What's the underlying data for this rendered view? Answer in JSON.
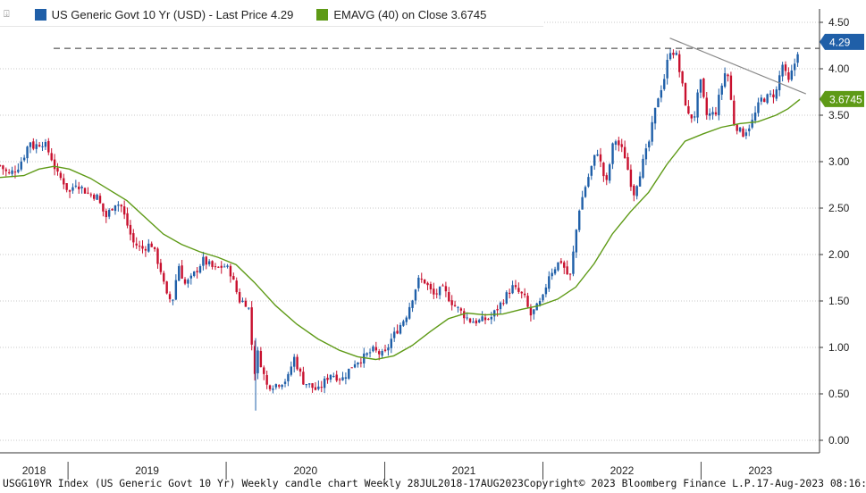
{
  "legend": {
    "menu_icon": "chart-menu-icon",
    "series1_label": "US Generic Govt 10 Yr (USD) - Last Price 4.29",
    "series1_color": "#1f5fa8",
    "series2_label": "EMAVG (40)  on Close 3.6745",
    "series2_color": "#5e9a16"
  },
  "footer": {
    "left": "USGG10YR Index (US Generic Govt 10 Yr) Weekly candle chart  Weekly 28JUL2018-17AUG2023",
    "middle": "Copyright© 2023 Bloomberg Finance L.P.",
    "right": "17-Aug-2023 08:16:16"
  },
  "chart_data": {
    "type": "candlestick",
    "title": "US Generic Govt 10 Yr (USD)",
    "frequency": "Weekly",
    "period": "28JUL2018-17AUG2023",
    "ylim": [
      0,
      4.6
    ],
    "y_ticks": [
      "0.00",
      "0.50",
      "1.00",
      "1.50",
      "2.00",
      "2.50",
      "3.00",
      "3.50",
      "4.00",
      "4.50"
    ],
    "x_labels": [
      "2018",
      "2019",
      "2020",
      "2021",
      "2022",
      "2023"
    ],
    "last_price": 4.29,
    "last_price_label": "4.29",
    "ema_last": 3.6745,
    "ema_last_label": "3.6745",
    "grid": true,
    "legend_position": "top-left",
    "colors": {
      "up": "#1f5fa8",
      "down": "#c8102e",
      "ema": "#5e9a16",
      "trend": "#888888",
      "ref": "#333333"
    },
    "reference_line": 4.22,
    "trendline": {
      "start": [
        "2022-10-21",
        4.33
      ],
      "end": [
        "2023-08-31",
        3.73
      ]
    },
    "closes": [
      [
        "2018-07-28",
        2.96
      ],
      [
        "2018-08-17",
        2.86
      ],
      [
        "2018-09-07",
        2.94
      ],
      [
        "2018-09-21",
        3.06
      ],
      [
        "2018-10-05",
        3.23
      ],
      [
        "2018-10-12",
        3.16
      ],
      [
        "2018-11-02",
        3.21
      ],
      [
        "2018-11-09",
        3.18
      ],
      [
        "2018-11-23",
        3.05
      ],
      [
        "2018-12-07",
        2.86
      ],
      [
        "2018-12-21",
        2.79
      ],
      [
        "2019-01-04",
        2.66
      ],
      [
        "2019-01-18",
        2.78
      ],
      [
        "2019-02-15",
        2.66
      ],
      [
        "2019-03-08",
        2.63
      ],
      [
        "2019-03-29",
        2.4
      ],
      [
        "2019-04-19",
        2.56
      ],
      [
        "2019-05-03",
        2.53
      ],
      [
        "2019-05-31",
        2.13
      ],
      [
        "2019-06-21",
        2.06
      ],
      [
        "2019-07-12",
        2.12
      ],
      [
        "2019-08-02",
        1.85
      ],
      [
        "2019-08-16",
        1.55
      ],
      [
        "2019-08-30",
        1.5
      ],
      [
        "2019-09-13",
        1.9
      ],
      [
        "2019-09-27",
        1.68
      ],
      [
        "2019-10-11",
        1.73
      ],
      [
        "2019-11-08",
        1.94
      ],
      [
        "2019-12-06",
        1.84
      ],
      [
        "2019-12-27",
        1.88
      ],
      [
        "2020-01-10",
        1.82
      ],
      [
        "2020-01-31",
        1.51
      ],
      [
        "2020-02-21",
        1.47
      ],
      [
        "2020-03-06",
        0.71
      ],
      [
        "2020-03-13",
        0.95
      ],
      [
        "2020-03-20",
        0.85
      ],
      [
        "2020-04-03",
        0.59
      ],
      [
        "2020-04-24",
        0.6
      ],
      [
        "2020-05-22",
        0.66
      ],
      [
        "2020-06-05",
        0.9
      ],
      [
        "2020-06-26",
        0.64
      ],
      [
        "2020-07-31",
        0.53
      ],
      [
        "2020-08-28",
        0.72
      ],
      [
        "2020-09-25",
        0.66
      ],
      [
        "2020-10-23",
        0.84
      ],
      [
        "2020-11-13",
        0.89
      ],
      [
        "2020-12-04",
        0.97
      ],
      [
        "2020-12-31",
        0.91
      ],
      [
        "2021-01-15",
        1.08
      ],
      [
        "2021-02-19",
        1.34
      ],
      [
        "2021-03-19",
        1.72
      ],
      [
        "2021-04-02",
        1.72
      ],
      [
        "2021-04-23",
        1.56
      ],
      [
        "2021-05-14",
        1.63
      ],
      [
        "2021-06-11",
        1.45
      ],
      [
        "2021-07-16",
        1.29
      ],
      [
        "2021-08-06",
        1.28
      ],
      [
        "2021-09-03",
        1.32
      ],
      [
        "2021-09-24",
        1.46
      ],
      [
        "2021-10-22",
        1.65
      ],
      [
        "2021-11-19",
        1.54
      ],
      [
        "2021-12-03",
        1.34
      ],
      [
        "2021-12-31",
        1.51
      ],
      [
        "2022-01-14",
        1.78
      ],
      [
        "2022-02-11",
        1.94
      ],
      [
        "2022-03-04",
        1.73
      ],
      [
        "2022-03-25",
        2.48
      ],
      [
        "2022-04-08",
        2.72
      ],
      [
        "2022-05-06",
        3.13
      ],
      [
        "2022-05-27",
        2.74
      ],
      [
        "2022-06-10",
        3.15
      ],
      [
        "2022-06-17",
        3.24
      ],
      [
        "2022-07-08",
        3.08
      ],
      [
        "2022-07-29",
        2.65
      ],
      [
        "2022-08-19",
        2.98
      ],
      [
        "2022-09-02",
        3.19
      ],
      [
        "2022-09-23",
        3.69
      ],
      [
        "2022-10-07",
        3.88
      ],
      [
        "2022-10-21",
        4.21
      ],
      [
        "2022-11-04",
        4.16
      ],
      [
        "2022-11-18",
        3.83
      ],
      [
        "2022-12-02",
        3.49
      ],
      [
        "2022-12-16",
        3.48
      ],
      [
        "2022-12-30",
        3.87
      ],
      [
        "2023-01-13",
        3.5
      ],
      [
        "2023-02-03",
        3.52
      ],
      [
        "2023-02-24",
        3.95
      ],
      [
        "2023-03-03",
        3.96
      ],
      [
        "2023-03-17",
        3.43
      ],
      [
        "2023-04-06",
        3.29
      ],
      [
        "2023-04-28",
        3.42
      ],
      [
        "2023-05-19",
        3.67
      ],
      [
        "2023-06-02",
        3.69
      ],
      [
        "2023-06-23",
        3.74
      ],
      [
        "2023-07-07",
        4.06
      ],
      [
        "2023-07-21",
        3.84
      ],
      [
        "2023-08-04",
        4.04
      ],
      [
        "2023-08-17",
        4.29
      ]
    ],
    "ema": [
      [
        "2018-07-28",
        2.83
      ],
      [
        "2018-09-21",
        2.85
      ],
      [
        "2018-10-26",
        2.92
      ],
      [
        "2018-11-30",
        2.95
      ],
      [
        "2019-01-04",
        2.92
      ],
      [
        "2019-02-22",
        2.82
      ],
      [
        "2019-04-05",
        2.7
      ],
      [
        "2019-05-17",
        2.58
      ],
      [
        "2019-06-28",
        2.4
      ],
      [
        "2019-08-09",
        2.22
      ],
      [
        "2019-09-20",
        2.11
      ],
      [
        "2019-11-01",
        2.03
      ],
      [
        "2019-12-13",
        1.97
      ],
      [
        "2020-01-24",
        1.89
      ],
      [
        "2020-03-06",
        1.7
      ],
      [
        "2020-04-24",
        1.45
      ],
      [
        "2020-06-12",
        1.25
      ],
      [
        "2020-07-31",
        1.09
      ],
      [
        "2020-09-18",
        0.97
      ],
      [
        "2020-10-30",
        0.9
      ],
      [
        "2020-12-11",
        0.87
      ],
      [
        "2021-01-22",
        0.91
      ],
      [
        "2021-03-05",
        1.02
      ],
      [
        "2021-04-16",
        1.17
      ],
      [
        "2021-05-28",
        1.31
      ],
      [
        "2021-07-09",
        1.37
      ],
      [
        "2021-08-20",
        1.35
      ],
      [
        "2021-10-01",
        1.36
      ],
      [
        "2021-11-12",
        1.41
      ],
      [
        "2021-12-24",
        1.45
      ],
      [
        "2022-02-04",
        1.52
      ],
      [
        "2022-03-18",
        1.65
      ],
      [
        "2022-04-29",
        1.9
      ],
      [
        "2022-06-10",
        2.22
      ],
      [
        "2022-07-22",
        2.46
      ],
      [
        "2022-09-02",
        2.67
      ],
      [
        "2022-10-14",
        2.97
      ],
      [
        "2022-11-25",
        3.22
      ],
      [
        "2023-01-06",
        3.3
      ],
      [
        "2023-02-17",
        3.37
      ],
      [
        "2023-03-31",
        3.41
      ],
      [
        "2023-05-12",
        3.43
      ],
      [
        "2023-06-23",
        3.5
      ],
      [
        "2023-07-21",
        3.57
      ],
      [
        "2023-08-17",
        3.67
      ]
    ]
  }
}
